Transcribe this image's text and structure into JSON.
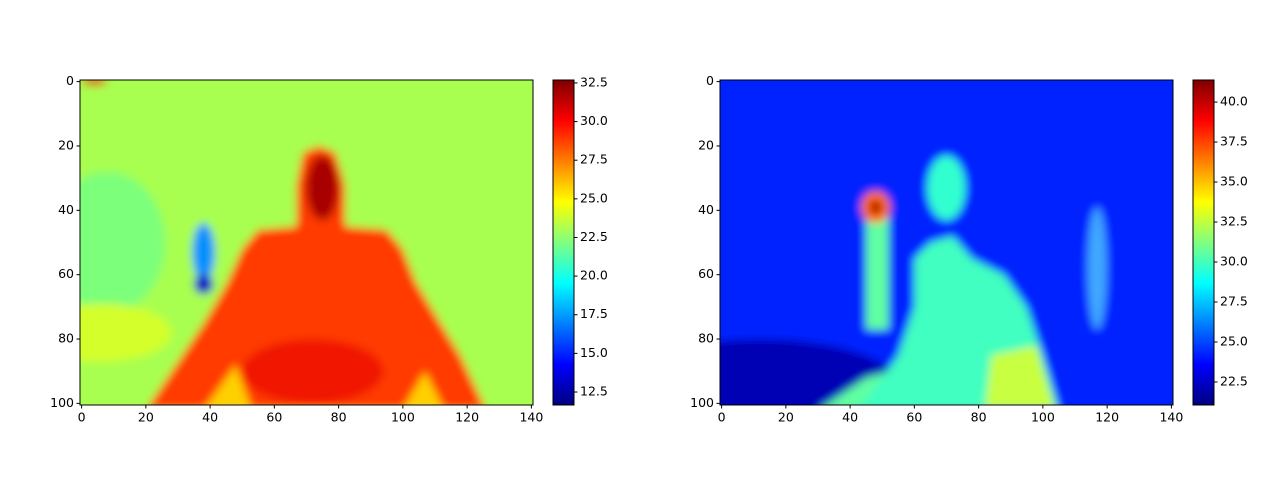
{
  "chart_data": [
    {
      "type": "heatmap",
      "cmap": "jet",
      "xlim": [
        -0.5,
        140.5
      ],
      "ylim": [
        100.5,
        -0.5
      ],
      "xticks": [
        0,
        20,
        40,
        60,
        80,
        100,
        120,
        140
      ],
      "yticks": [
        0,
        20,
        40,
        60,
        80,
        100
      ],
      "clim": [
        11.66,
        32.69
      ],
      "cticks": [
        12.5,
        {
          "value": 15,
          "label": "15.0"
        },
        17.5,
        {
          "value": 20,
          "label": "20.0"
        },
        22.5,
        {
          "value": 25,
          "label": "25.0"
        },
        27.5,
        {
          "value": 30,
          "label": "30.0"
        },
        32.5
      ]
    },
    {
      "type": "heatmap",
      "cmap": "jet",
      "xlim": [
        -0.5,
        140.5
      ],
      "ylim": [
        100.5,
        -0.5
      ],
      "xticks": [
        0,
        20,
        40,
        60,
        80,
        100,
        120,
        140
      ],
      "yticks": [
        0,
        20,
        40,
        60,
        80,
        100
      ],
      "clim": [
        21.06,
        41.38
      ],
      "cticks": [
        22.5,
        {
          "value": 25,
          "label": "25.0"
        },
        27.5,
        {
          "value": 30,
          "label": "30.0"
        },
        32.5,
        {
          "value": 35,
          "label": "35.0"
        },
        37.5,
        {
          "value": 40,
          "label": "40.0"
        }
      ]
    }
  ]
}
